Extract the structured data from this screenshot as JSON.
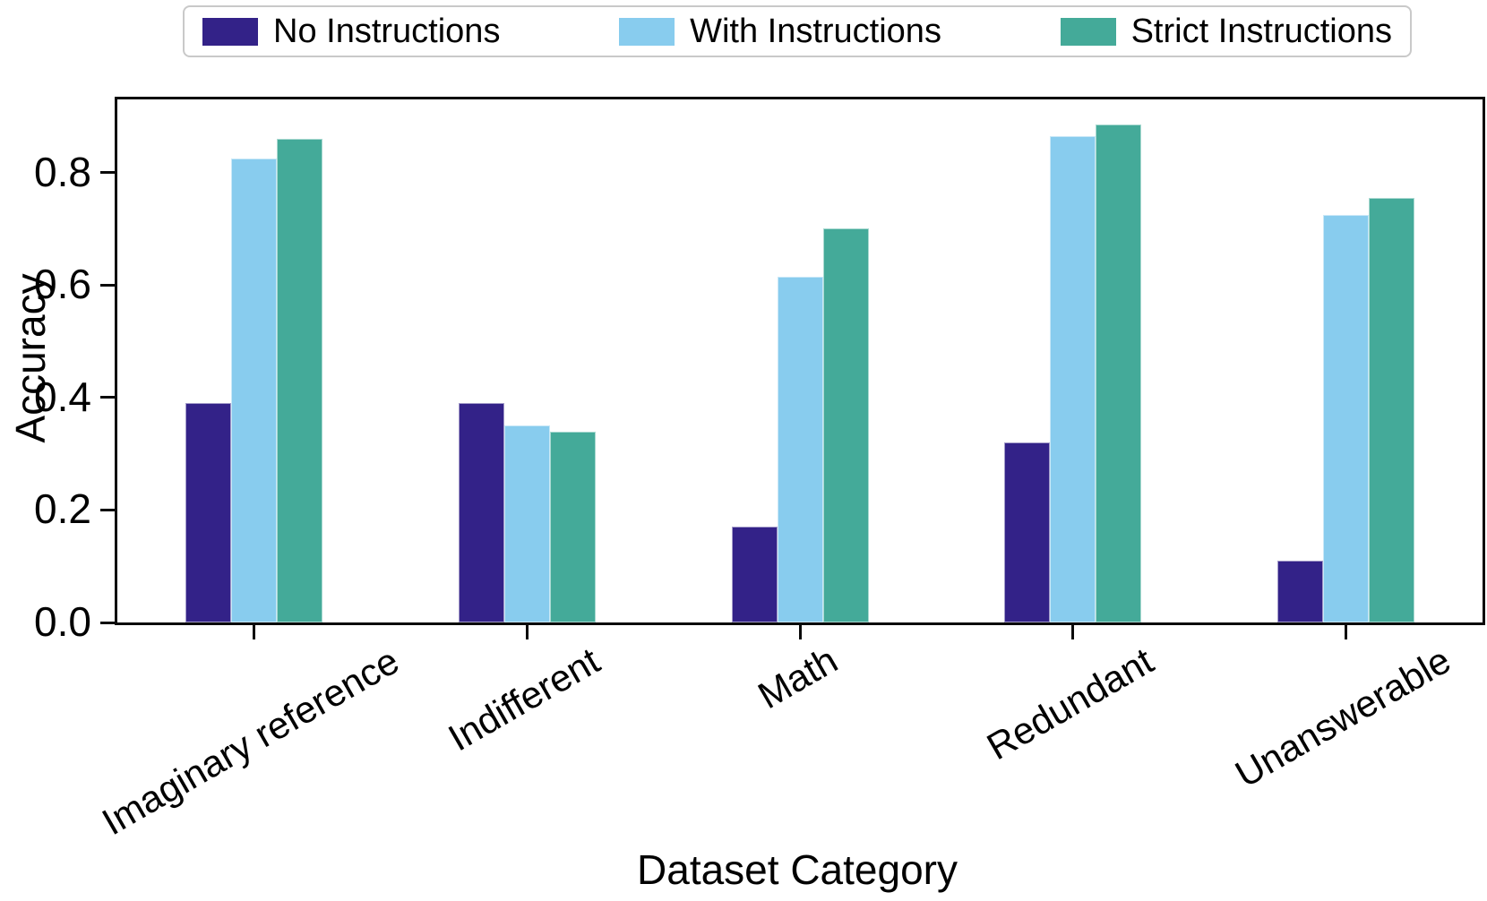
{
  "legend": {
    "items": [
      {
        "label": "No Instructions",
        "color": "#332288"
      },
      {
        "label": "With Instructions",
        "color": "#88CCEE"
      },
      {
        "label": "Strict Instructions",
        "color": "#44AA99"
      }
    ]
  },
  "chart_data": {
    "type": "bar",
    "title": "",
    "categories": [
      "Imaginary reference",
      "Indifferent",
      "Math",
      "Redundant",
      "Unanswerable"
    ],
    "series": [
      {
        "name": "No Instructions",
        "color": "#332288",
        "values": [
          0.39,
          0.39,
          0.17,
          0.32,
          0.11
        ]
      },
      {
        "name": "With Instructions",
        "color": "#88CCEE",
        "values": [
          0.825,
          0.35,
          0.615,
          0.865,
          0.725
        ]
      },
      {
        "name": "Strict Instructions",
        "color": "#44AA99",
        "values": [
          0.86,
          0.34,
          0.7,
          0.885,
          0.755
        ]
      }
    ],
    "xlabel": "Dataset Category",
    "ylabel": "Accuracy",
    "ylim": [
      0,
      0.93
    ],
    "yticks": [
      0.0,
      0.2,
      0.4,
      0.6,
      0.8
    ],
    "grid": false,
    "legend_position": "top",
    "tick_label_rotation_deg": 30,
    "axis_color": "#0a0a0a"
  }
}
